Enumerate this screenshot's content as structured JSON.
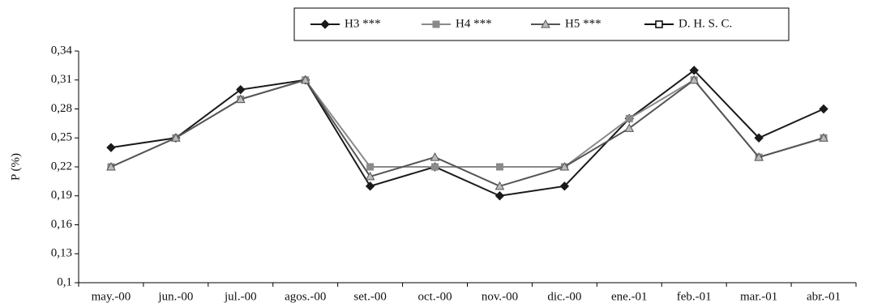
{
  "chart_data": {
    "type": "line",
    "y_label": "P (%)",
    "categories": [
      "may.-00",
      "jun.-00",
      "jul.-00",
      "agos.-00",
      "set.-00",
      "oct.-00",
      "nov.-00",
      "dic.-00",
      "ene.-01",
      "feb.-01",
      "mar.-01",
      "abr.-01"
    ],
    "series": [
      {
        "name": "H3 ***",
        "color": "#1a1a1a",
        "marker": "diamond",
        "values": [
          0.24,
          0.25,
          0.3,
          0.31,
          0.2,
          0.22,
          0.19,
          0.2,
          0.27,
          0.32,
          0.25,
          0.28
        ]
      },
      {
        "name": "H4 ***",
        "color": "#8a8a8a",
        "marker": "square",
        "values": [
          0.22,
          0.25,
          0.29,
          0.31,
          0.22,
          0.22,
          0.22,
          0.22,
          0.27,
          0.31,
          0.23,
          0.25
        ]
      },
      {
        "name": "H5 ***",
        "color": "#555555",
        "marker": "triangle",
        "values": [
          0.22,
          0.25,
          0.29,
          0.31,
          0.21,
          0.23,
          0.2,
          0.22,
          0.26,
          0.31,
          0.23,
          0.25
        ]
      },
      {
        "name": "D. H. S. C.",
        "color": "#000000",
        "marker": "hollow-square",
        "values": [
          null,
          null,
          null,
          null,
          null,
          null,
          null,
          null,
          null,
          null,
          null,
          null
        ]
      }
    ],
    "ylim": [
      0.1,
      0.34
    ],
    "yticks": [
      {
        "value": 0.1,
        "label": "0,1"
      },
      {
        "value": 0.13,
        "label": "0,13"
      },
      {
        "value": 0.16,
        "label": "0,16"
      },
      {
        "value": 0.19,
        "label": "0,19"
      },
      {
        "value": 0.22,
        "label": "0,22"
      },
      {
        "value": 0.25,
        "label": "0,25"
      },
      {
        "value": 0.28,
        "label": "0,28"
      },
      {
        "value": 0.31,
        "label": "0,31"
      },
      {
        "value": 0.34,
        "label": "0,34"
      }
    ],
    "grid": false
  }
}
